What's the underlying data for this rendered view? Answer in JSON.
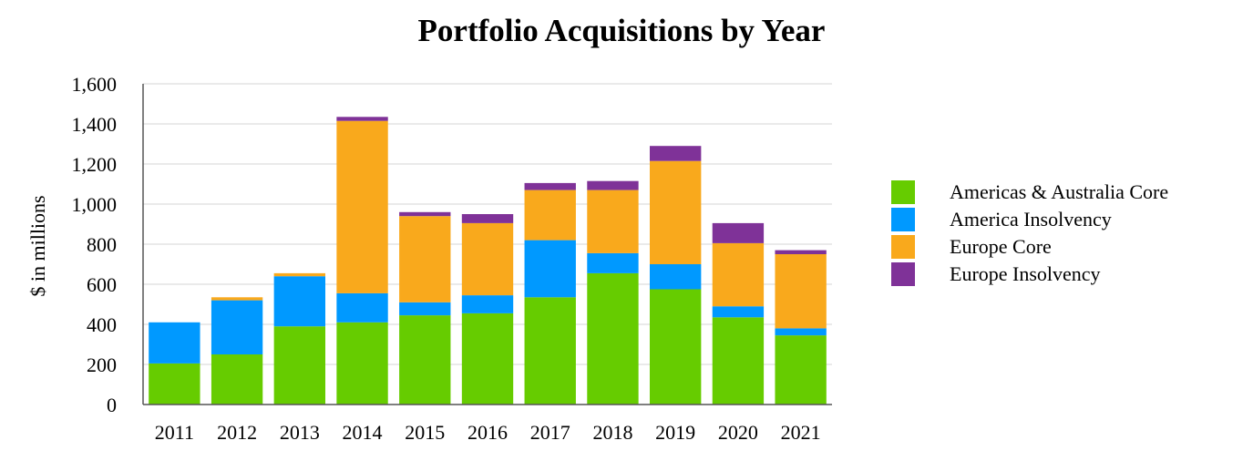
{
  "chart_data": {
    "type": "bar",
    "stacked": true,
    "title": "Portfolio Acquisitions by Year",
    "xlabel": "",
    "ylabel": "$ in millions",
    "ylim": [
      0,
      1600
    ],
    "yticks": [
      0,
      200,
      400,
      600,
      800,
      1000,
      1200,
      1400,
      1600
    ],
    "ytick_labels": [
      "0",
      "200",
      "400",
      "600",
      "800",
      "1,000",
      "1,200",
      "1,400",
      "1,600"
    ],
    "grid": true,
    "legend_position": "right",
    "categories": [
      "2011",
      "2012",
      "2013",
      "2014",
      "2015",
      "2016",
      "2017",
      "2018",
      "2019",
      "2020",
      "2021"
    ],
    "series": [
      {
        "name": "Americas & Australia Core",
        "color": "#66cc00",
        "values": [
          205,
          250,
          390,
          410,
          445,
          455,
          535,
          655,
          575,
          435,
          345
        ]
      },
      {
        "name": "America Insolvency",
        "color": "#0099ff",
        "values": [
          205,
          270,
          250,
          145,
          65,
          90,
          285,
          100,
          125,
          55,
          35
        ]
      },
      {
        "name": "Europe Core",
        "color": "#f9a91c",
        "values": [
          0,
          15,
          15,
          860,
          430,
          360,
          250,
          315,
          515,
          315,
          370
        ]
      },
      {
        "name": "Europe Insolvency",
        "color": "#7f3298",
        "values": [
          0,
          0,
          0,
          20,
          20,
          45,
          35,
          45,
          75,
          100,
          20
        ]
      }
    ]
  }
}
